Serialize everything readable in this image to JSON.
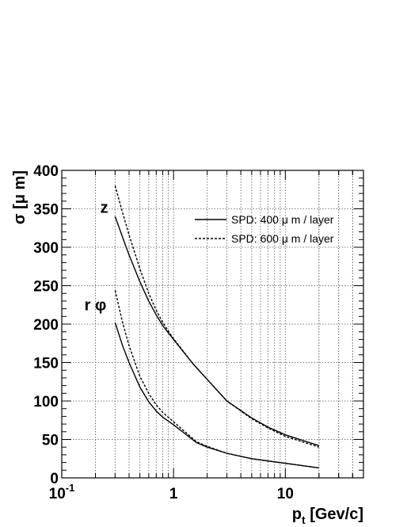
{
  "chart_data": {
    "type": "line",
    "x_scale": "log",
    "xlim": [
      0.1,
      50
    ],
    "ylim": [
      0,
      400
    ],
    "grid": true,
    "legend_placement": "top-right",
    "xlabel_main": "p",
    "xlabel_sub": "t",
    "xlabel_rest": " [Gev/c]",
    "ylabel": "σ [μ m]",
    "x_tick_labels": [
      {
        "value": 0.1,
        "base": "10",
        "exp": "-1"
      },
      {
        "value": 1,
        "base": "1",
        "exp": ""
      },
      {
        "value": 10,
        "base": "10",
        "exp": ""
      }
    ],
    "y_ticks": [
      0,
      50,
      100,
      150,
      200,
      250,
      300,
      350,
      400
    ],
    "annotations": [
      {
        "text": "z",
        "x": 0.24,
        "y": 345
      },
      {
        "text": "r φ",
        "x": 0.2,
        "y": 218
      }
    ],
    "series": [
      {
        "name": "SPD: 400  μ m / layer",
        "group": "z",
        "style": "solid",
        "x": [
          0.3,
          0.35,
          0.4,
          0.5,
          0.6,
          0.7,
          0.8,
          1.0,
          1.5,
          2,
          3,
          5,
          7,
          10,
          20
        ],
        "y": [
          340,
          313,
          290,
          255,
          230,
          212,
          198,
          180,
          148,
          128,
          100,
          78,
          66,
          56,
          42
        ]
      },
      {
        "name": "SPD: 600  μ m / layer",
        "group": "z",
        "style": "dashed",
        "x": [
          0.3,
          0.35,
          0.4,
          0.5,
          0.6,
          0.7,
          0.8,
          1.0,
          1.5,
          2,
          3,
          5,
          7,
          10,
          20
        ],
        "y": [
          380,
          345,
          316,
          272,
          240,
          218,
          202,
          181,
          148,
          128,
          100,
          77,
          65,
          54,
          40
        ]
      },
      {
        "name": "SPD: 400  μ m / layer",
        "group": "r φ",
        "style": "solid",
        "x": [
          0.3,
          0.35,
          0.4,
          0.5,
          0.6,
          0.7,
          0.8,
          1.0,
          1.6,
          2,
          3,
          5,
          7,
          10,
          20
        ],
        "y": [
          202,
          172,
          150,
          118,
          99,
          87,
          79,
          69,
          46,
          40,
          32,
          25,
          22,
          19,
          13
        ]
      },
      {
        "name": "SPD: 600  μ m / layer",
        "group": "r φ",
        "style": "dashed",
        "x": [
          0.3,
          0.35,
          0.4,
          0.5,
          0.6,
          0.7,
          0.8,
          1.0,
          1.6,
          2,
          3,
          5,
          7,
          10,
          20
        ],
        "y": [
          244,
          202,
          172,
          132,
          110,
          95,
          85,
          73,
          47,
          41,
          32,
          25,
          22,
          19,
          13
        ]
      }
    ],
    "legend": [
      {
        "label": "SPD: 400  μ m / layer",
        "style": "solid"
      },
      {
        "label": "SPD: 600  μ m / layer",
        "style": "dashed"
      }
    ]
  }
}
